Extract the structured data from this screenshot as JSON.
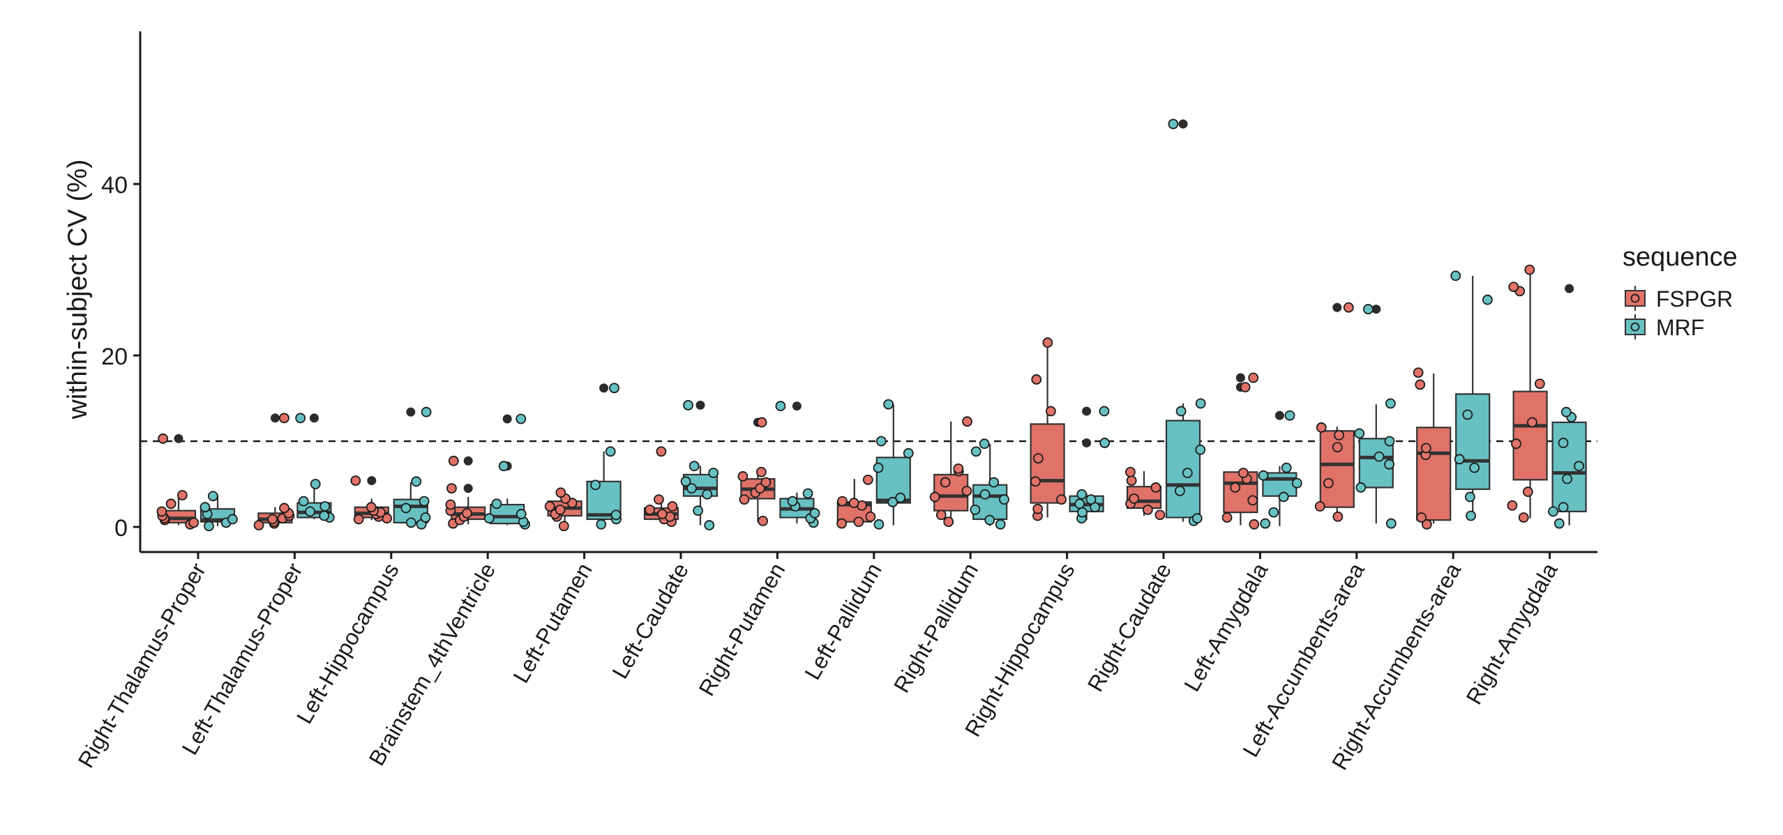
{
  "chart_data": {
    "type": "boxplot",
    "title": "",
    "xlabel": "",
    "ylabel": "within-subject CV (%)",
    "ylim": [
      -2.5,
      58
    ],
    "yticks": [
      0,
      20,
      40
    ],
    "ytick_labels": [
      "0",
      "20",
      "40"
    ],
    "reference_line": {
      "y": 10,
      "style": "dashed"
    },
    "legend": {
      "title": "sequence",
      "position": "right",
      "entries": [
        {
          "name": "FSPGR",
          "color": "#E07268"
        },
        {
          "name": "MRF",
          "color": "#67C1C3"
        }
      ]
    },
    "categories": [
      "Right-Thalamus-Proper",
      "Left-Thalamus-Proper",
      "Left-Hippocampus",
      "Brainstem_4thVentricle",
      "Left-Putamen",
      "Left-Caudate",
      "Right-Putamen",
      "Left-Pallidum",
      "Right-Pallidum",
      "Right-Hippocampus",
      "Right-Caudate",
      "Left-Amygdala",
      "Left-Accumbents-area",
      "Right-Accumbents-area",
      "Right-Amygdala"
    ],
    "series": [
      {
        "name": "FSPGR",
        "color": "#E07268",
        "boxes": [
          {
            "whisker_low": 0.2,
            "q1": 0.5,
            "median": 1.0,
            "q3": 1.9,
            "whisker_high": 3.7,
            "outliers": [
              10.3
            ],
            "points": [
              0.3,
              0.5,
              0.8,
              1.0,
              1.3,
              1.8,
              2.7,
              3.7,
              10.3
            ]
          },
          {
            "whisker_low": 0.1,
            "q1": 0.5,
            "median": 0.9,
            "q3": 1.6,
            "whisker_high": 2.3,
            "outliers": [
              12.7
            ],
            "points": [
              0.2,
              0.4,
              0.6,
              0.9,
              1.0,
              1.3,
              1.6,
              2.2,
              12.7
            ]
          },
          {
            "whisker_low": 0.8,
            "q1": 1.1,
            "median": 1.6,
            "q3": 2.3,
            "whisker_high": 3.3,
            "outliers": [
              5.4
            ],
            "points": [
              0.9,
              1.0,
              1.2,
              1.5,
              1.7,
              1.9,
              2.3,
              5.4
            ]
          },
          {
            "whisker_low": 0.3,
            "q1": 0.9,
            "median": 1.5,
            "q3": 2.3,
            "whisker_high": 3.5,
            "outliers": [
              4.5,
              7.7
            ],
            "points": [
              0.4,
              0.8,
              1.2,
              1.6,
              1.9,
              2.6,
              4.5,
              7.7
            ]
          },
          {
            "whisker_low": 0.1,
            "q1": 1.3,
            "median": 2.2,
            "q3": 3.0,
            "whisker_high": 4.1,
            "outliers": [],
            "points": [
              0.1,
              1.2,
              1.5,
              2.0,
              2.4,
              2.8,
              3.3,
              4.0
            ]
          },
          {
            "whisker_low": 0.4,
            "q1": 0.9,
            "median": 1.5,
            "q3": 2.2,
            "whisker_high": 3.3,
            "outliers": [
              8.8
            ],
            "points": [
              0.6,
              0.9,
              1.2,
              1.5,
              2.0,
              2.4,
              3.2,
              8.8
            ]
          },
          {
            "whisker_low": 0.6,
            "q1": 3.3,
            "median": 4.4,
            "q3": 5.6,
            "whisker_high": 6.4,
            "outliers": [
              12.2
            ],
            "points": [
              0.7,
              3.2,
              4.0,
              4.5,
              5.2,
              5.9,
              6.4,
              12.2
            ]
          },
          {
            "whisker_low": 0.4,
            "q1": 0.6,
            "median": 2.6,
            "q3": 2.9,
            "whisker_high": 5.6,
            "outliers": [],
            "points": [
              0.4,
              0.6,
              1.2,
              2.5,
              2.8,
              3.0,
              5.5
            ]
          },
          {
            "whisker_low": 0.5,
            "q1": 1.9,
            "median": 3.6,
            "q3": 6.1,
            "whisker_high": 12.3,
            "outliers": [],
            "points": [
              0.6,
              1.4,
              3.5,
              4.2,
              5.2,
              6.5,
              6.8,
              12.3
            ]
          },
          {
            "whisker_low": 1.1,
            "q1": 2.8,
            "median": 5.4,
            "q3": 12.0,
            "whisker_high": 21.5,
            "outliers": [],
            "points": [
              1.3,
              2.1,
              3.2,
              5.3,
              8.0,
              13.5,
              17.2,
              21.5
            ]
          },
          {
            "whisker_low": 1.3,
            "q1": 2.2,
            "median": 3.0,
            "q3": 4.7,
            "whisker_high": 6.5,
            "outliers": [],
            "points": [
              1.4,
              2.0,
              2.7,
              3.3,
              4.6,
              5.4,
              6.4
            ]
          },
          {
            "whisker_low": 0.2,
            "q1": 1.7,
            "median": 5.1,
            "q3": 6.4,
            "whisker_high": 6.8,
            "outliers": [
              16.3,
              17.4
            ],
            "points": [
              0.3,
              1.1,
              3.1,
              4.6,
              5.6,
              6.3,
              16.3,
              17.4
            ]
          },
          {
            "whisker_low": 1.1,
            "q1": 2.3,
            "median": 7.3,
            "q3": 11.2,
            "whisker_high": 11.7,
            "outliers": [
              25.6
            ],
            "points": [
              1.2,
              2.4,
              5.1,
              9.3,
              10.7,
              11.6,
              25.6
            ]
          },
          {
            "whisker_low": 0.4,
            "q1": 0.8,
            "median": 8.6,
            "q3": 11.6,
            "whisker_high": 17.9,
            "outliers": [],
            "points": [
              0.3,
              1.1,
              8.4,
              9.2,
              16.6,
              18.0
            ]
          },
          {
            "whisker_low": 1.0,
            "q1": 5.5,
            "median": 11.8,
            "q3": 15.8,
            "whisker_high": 30.0,
            "outliers": [],
            "points": [
              1.1,
              2.5,
              4.1,
              9.7,
              12.2,
              16.7,
              27.5,
              28.0,
              30.0
            ]
          }
        ]
      },
      {
        "name": "MRF",
        "color": "#67C1C3",
        "boxes": [
          {
            "whisker_low": 0.1,
            "q1": 0.6,
            "median": 0.8,
            "q3": 2.1,
            "whisker_high": 3.7,
            "outliers": [],
            "points": [
              0.1,
              0.5,
              0.9,
              1.5,
              2.3,
              3.6
            ]
          },
          {
            "whisker_low": 0.9,
            "q1": 1.1,
            "median": 1.7,
            "q3": 2.8,
            "whisker_high": 5.0,
            "outliers": [
              12.7
            ],
            "points": [
              1.1,
              1.3,
              1.8,
              2.4,
              3.0,
              5.0,
              12.7
            ]
          },
          {
            "whisker_low": 0.2,
            "q1": 0.5,
            "median": 2.4,
            "q3": 3.2,
            "whisker_high": 5.2,
            "outliers": [
              13.4
            ],
            "points": [
              0.3,
              0.5,
              1.1,
              2.2,
              3.0,
              5.3,
              13.4
            ]
          },
          {
            "whisker_low": 0.2,
            "q1": 0.4,
            "median": 1.2,
            "q3": 2.6,
            "whisker_high": 3.3,
            "outliers": [
              7.1,
              12.6
            ],
            "points": [
              0.3,
              0.6,
              1.0,
              1.5,
              2.7,
              7.1,
              12.6
            ]
          },
          {
            "whisker_low": 0.3,
            "q1": 0.9,
            "median": 1.4,
            "q3": 5.3,
            "whisker_high": 8.8,
            "outliers": [
              16.2
            ],
            "points": [
              0.3,
              0.9,
              1.4,
              4.9,
              8.8,
              16.2
            ]
          },
          {
            "whisker_low": 0.2,
            "q1": 3.6,
            "median": 4.5,
            "q3": 6.1,
            "whisker_high": 7.1,
            "outliers": [
              14.2
            ],
            "points": [
              0.2,
              1.9,
              3.8,
              4.5,
              5.3,
              6.3,
              7.1,
              14.2
            ]
          },
          {
            "whisker_low": 0.4,
            "q1": 1.1,
            "median": 2.1,
            "q3": 3.3,
            "whisker_high": 4.0,
            "outliers": [
              14.1
            ],
            "points": [
              0.5,
              1.0,
              1.6,
              2.4,
              3.0,
              3.9,
              14.1
            ]
          },
          {
            "whisker_low": 0.2,
            "q1": 2.8,
            "median": 3.1,
            "q3": 8.1,
            "whisker_high": 14.3,
            "outliers": [],
            "points": [
              0.3,
              2.9,
              3.4,
              6.9,
              8.6,
              10.0,
              14.3
            ]
          },
          {
            "whisker_low": 0.1,
            "q1": 0.9,
            "median": 3.6,
            "q3": 4.9,
            "whisker_high": 9.7,
            "outliers": [],
            "points": [
              0.3,
              0.8,
              2.0,
              3.2,
              3.8,
              5.2,
              8.8,
              9.7
            ]
          },
          {
            "whisker_low": 0.8,
            "q1": 1.8,
            "median": 2.6,
            "q3": 3.6,
            "whisker_high": 3.9,
            "outliers": [
              9.8,
              13.5
            ],
            "points": [
              1.0,
              1.7,
              2.3,
              2.7,
              3.2,
              3.8,
              9.8,
              13.5
            ]
          },
          {
            "whisker_low": 0.6,
            "q1": 1.1,
            "median": 4.9,
            "q3": 12.4,
            "whisker_high": 14.4,
            "outliers": [
              47.0
            ],
            "points": [
              0.7,
              1.0,
              4.2,
              6.3,
              9.0,
              13.5,
              14.4,
              47.0
            ]
          },
          {
            "whisker_low": 0.1,
            "q1": 3.6,
            "median": 5.6,
            "q3": 6.3,
            "whisker_high": 7.1,
            "outliers": [
              13.0
            ],
            "points": [
              0.4,
              1.7,
              3.5,
              5.1,
              6.0,
              6.9,
              13.0
            ]
          },
          {
            "whisker_low": 0.4,
            "q1": 4.6,
            "median": 8.1,
            "q3": 10.3,
            "whisker_high": 14.3,
            "outliers": [
              25.4
            ],
            "points": [
              0.4,
              4.6,
              7.3,
              8.2,
              10.0,
              10.9,
              14.4,
              25.4
            ]
          },
          {
            "whisker_low": 1.2,
            "q1": 4.4,
            "median": 7.7,
            "q3": 15.5,
            "whisker_high": 29.3,
            "outliers": [],
            "points": [
              1.3,
              3.5,
              6.9,
              7.9,
              13.1,
              26.5,
              29.3
            ]
          },
          {
            "whisker_low": 0.2,
            "q1": 1.8,
            "median": 6.3,
            "q3": 12.2,
            "whisker_high": 13.4,
            "outliers": [
              27.8
            ],
            "points": [
              0.4,
              1.8,
              2.3,
              5.6,
              7.1,
              9.8,
              12.8,
              13.4
            ]
          }
        ]
      }
    ]
  }
}
